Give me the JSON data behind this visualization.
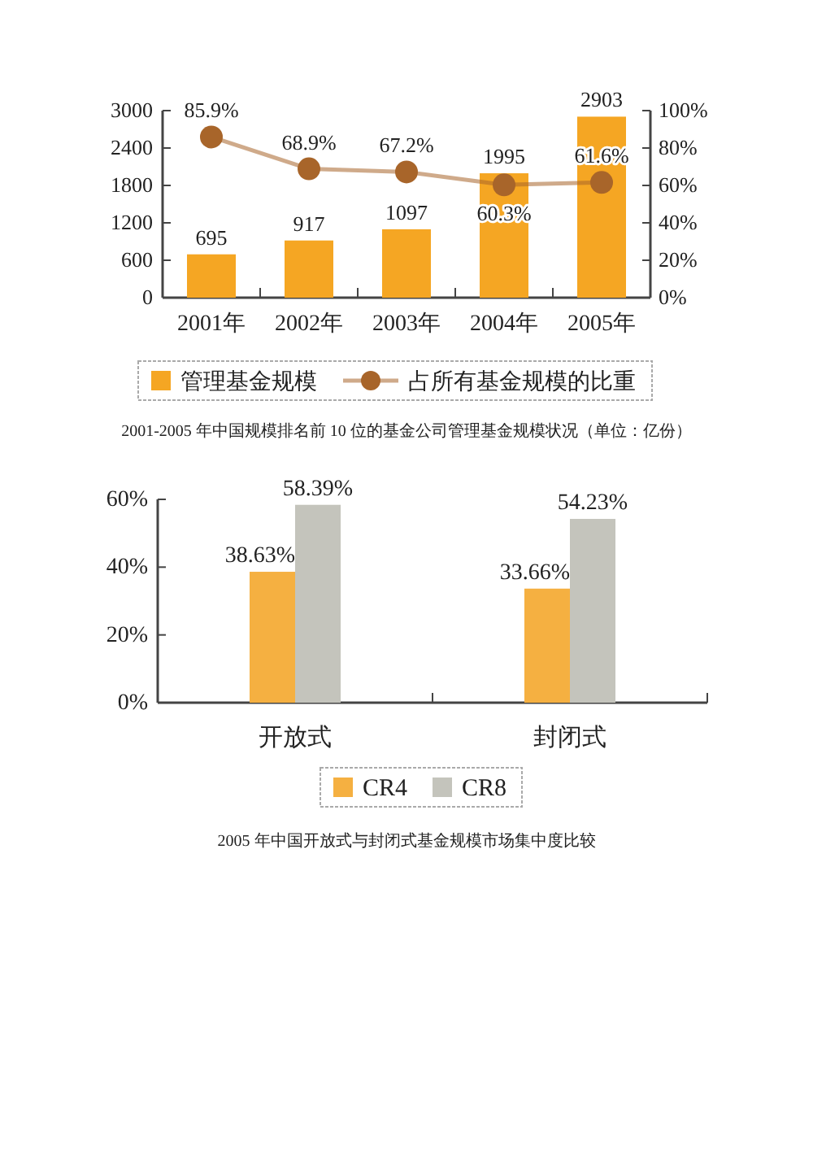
{
  "chart_data": [
    {
      "type": "bar",
      "categories": [
        "2001年",
        "2002年",
        "2003年",
        "2004年",
        "2005年"
      ],
      "series": [
        {
          "name": "管理基金规模",
          "color": "#f5a623",
          "values": [
            695,
            917,
            1097,
            1995,
            2903
          ],
          "value_labels": [
            "695",
            "917",
            "1097",
            "1995",
            "2903"
          ]
        },
        {
          "name": "占所有基金规模的比重",
          "type": "line",
          "axis": "y2",
          "marker": "circle",
          "color": "#a8652a",
          "values": [
            85.9,
            68.9,
            67.2,
            60.3,
            61.6
          ],
          "value_labels": [
            "85.9%",
            "68.9%",
            "67.2%",
            "60.3%",
            "61.6%"
          ]
        }
      ],
      "ylim": [
        0,
        3000
      ],
      "yticks": [
        0,
        600,
        1200,
        1800,
        2400,
        3000
      ],
      "y2lim": [
        0,
        100
      ],
      "y2ticks": [
        {
          "value": 0,
          "label": "0%"
        },
        {
          "value": 20,
          "label": "20%"
        },
        {
          "value": 40,
          "label": "40%"
        },
        {
          "value": 60,
          "label": "60%"
        },
        {
          "value": 80,
          "label": "80%"
        },
        {
          "value": 100,
          "label": "100%"
        }
      ],
      "legend": "bottom",
      "annotations": [
        "2001-2005 年中国规模排名前 10 位的基金公司管理基金规模状况（单位：亿份）"
      ]
    },
    {
      "type": "bar",
      "categories": [
        "开放式",
        "封闭式"
      ],
      "series": [
        {
          "name": "CR4",
          "color": "#f5b041",
          "values": [
            38.63,
            33.66
          ],
          "value_labels": [
            "38.63%",
            "33.66%"
          ]
        },
        {
          "name": "CR8",
          "color": "#c4c4bc",
          "values": [
            58.39,
            54.23
          ],
          "value_labels": [
            "58.39%",
            "54.23%"
          ]
        }
      ],
      "ylim": [
        0,
        60
      ],
      "yticks": [
        {
          "value": 0,
          "label": "0%"
        },
        {
          "value": 20,
          "label": "20%"
        },
        {
          "value": 40,
          "label": "40%"
        },
        {
          "value": 60,
          "label": "60%"
        }
      ],
      "legend": "bottom",
      "annotations": [
        "2005 年中国开放式与封闭式基金规模市场集中度比较"
      ]
    }
  ]
}
